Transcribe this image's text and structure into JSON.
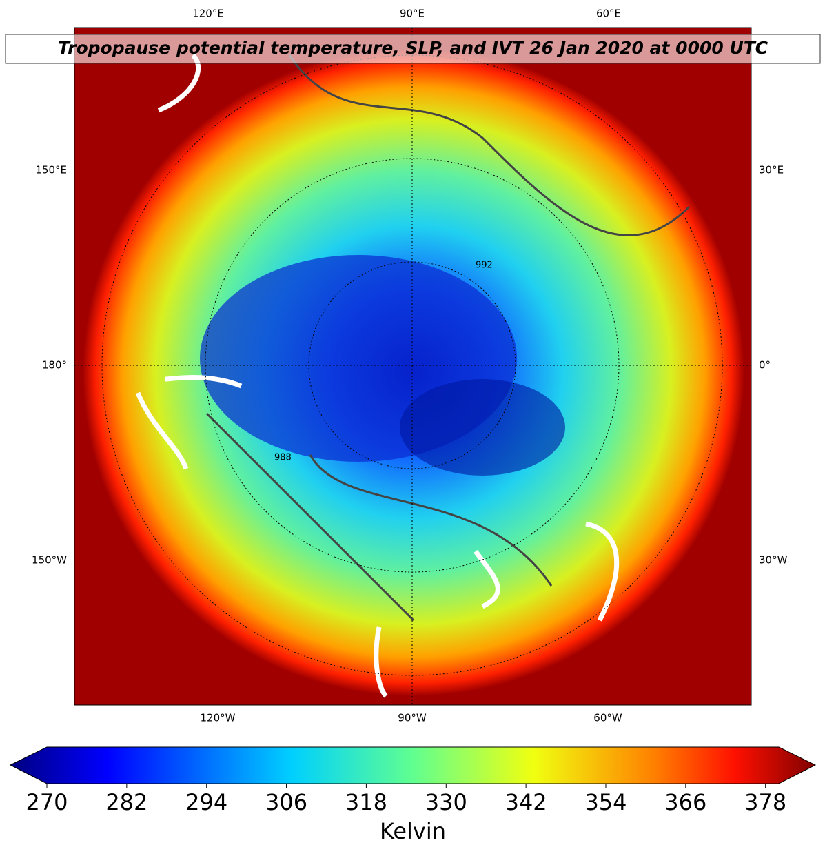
{
  "map": {
    "title": "Tropopause potential temperature, SLP, and IVT 26 Jan 2020 at 0000 UTC",
    "lon_labels": {
      "top": [
        "120°E",
        "90°E",
        "60°E"
      ],
      "left": [
        "150°E",
        "180°",
        "150°W"
      ],
      "right": [
        "30°E",
        "0°",
        "30°W"
      ],
      "bottom": [
        "120°W",
        "90°W",
        "60°W"
      ]
    },
    "contour_labels": [
      "992",
      "988"
    ],
    "colorbar": {
      "lim": [
        270,
        380
      ],
      "ticks": [
        270,
        282,
        294,
        306,
        318,
        330,
        342,
        354,
        366,
        378
      ],
      "label": "Kelvin"
    }
  }
}
